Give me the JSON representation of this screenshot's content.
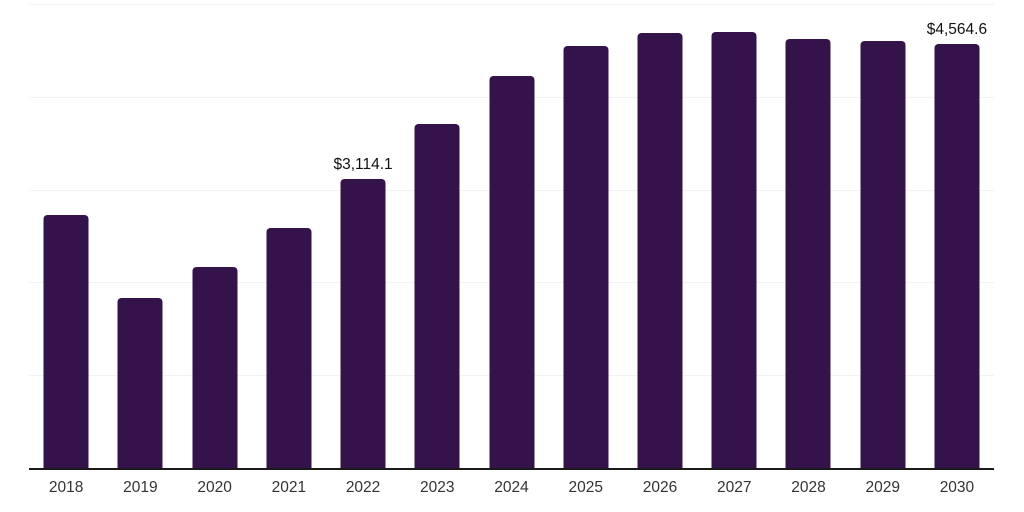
{
  "chart_data": {
    "type": "bar",
    "title": "",
    "xlabel": "",
    "ylabel": "",
    "categories": [
      "2018",
      "2019",
      "2020",
      "2021",
      "2022",
      "2023",
      "2024",
      "2025",
      "2026",
      "2027",
      "2028",
      "2029",
      "2030"
    ],
    "values": [
      2725,
      1830,
      2170,
      2590,
      3114.1,
      3710,
      4220,
      4550,
      4690,
      4700,
      4625,
      4605,
      4564.6
    ],
    "data_labels": [
      "",
      "",
      "",
      "",
      "$3,114.1",
      "",
      "",
      "",
      "",
      "",
      "",
      "",
      "$4,564.6"
    ],
    "ylim": [
      0,
      5000
    ],
    "gridline_step": 1000,
    "grid": "horizontal-only",
    "legend": "none",
    "colors": {
      "bar": "#331349",
      "axis_line": "#1a1a1a",
      "gridline": "#f2f2f2",
      "tick_label": "#333333",
      "data_label": "#111111",
      "background": "#ffffff"
    }
  }
}
